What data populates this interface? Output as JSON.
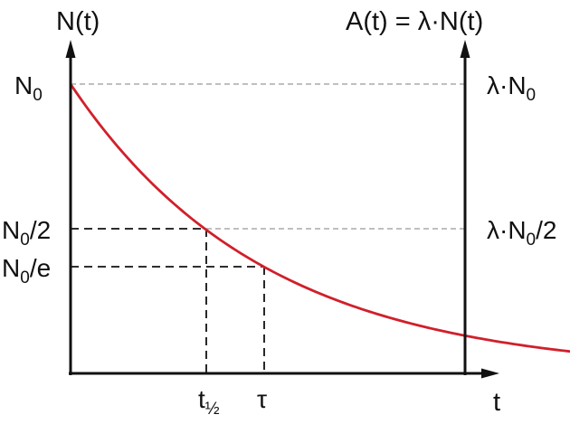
{
  "chart_data": {
    "type": "line",
    "description_free": true,
    "curve": {
      "function": "N(t) = N0 * exp(-t / tau)",
      "color": "#d0202b",
      "t_max_over_tau": 3.43
    },
    "left_axis": {
      "label": "N(t)",
      "ticks": [
        {
          "main": "N",
          "sub": "0",
          "tail": ""
        },
        {
          "main": "N",
          "sub": "0",
          "tail": "/2"
        },
        {
          "main": "N",
          "sub": "0",
          "tail": "/e"
        }
      ]
    },
    "right_axis": {
      "label": "A(t) = λ·N(t)",
      "ticks": [
        {
          "main": "λ·N",
          "sub": "0",
          "tail": ""
        },
        {
          "main": "λ·N",
          "sub": "0",
          "tail": "/2"
        }
      ]
    },
    "x_axis": {
      "label": "t",
      "ticks": [
        {
          "main": "t",
          "sub": "½"
        },
        {
          "main": "τ",
          "sub": ""
        }
      ]
    },
    "guides": {
      "gray_dashed_color": "#aaaaaa",
      "black_dashed_color": "#111111"
    }
  }
}
